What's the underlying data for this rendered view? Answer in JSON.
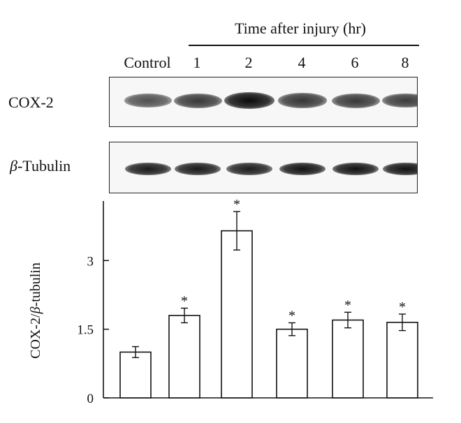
{
  "header": {
    "time_label": "Time after injury (hr)"
  },
  "lanes": [
    "Control",
    "1",
    "2",
    "4",
    "6",
    "8"
  ],
  "blots": {
    "cox2": {
      "label": "COX-2",
      "intensity": [
        0.55,
        0.7,
        1.0,
        0.72,
        0.7,
        0.68
      ]
    },
    "tubulin": {
      "label_symbol": "β",
      "label_text": "-Tubulin",
      "intensity": [
        0.9,
        0.9,
        0.88,
        0.95,
        0.95,
        0.95
      ]
    }
  },
  "chart_data": {
    "type": "bar",
    "categories": [
      "Control",
      "1",
      "2",
      "4",
      "6",
      "8"
    ],
    "values": [
      1.0,
      1.8,
      3.65,
      1.5,
      1.7,
      1.65
    ],
    "errors": [
      0.12,
      0.16,
      0.42,
      0.14,
      0.17,
      0.18
    ],
    "significance": [
      "",
      "*",
      "*",
      "*",
      "*",
      "*"
    ],
    "ylabel_part1": "COX-2/",
    "ylabel_symbol": "β",
    "ylabel_part2": "-tubulin",
    "yticks": [
      0,
      1.5,
      3
    ],
    "ytick_labels": [
      "0",
      "1.5",
      "3"
    ],
    "ylim": [
      0,
      4.3
    ],
    "grid": false
  }
}
